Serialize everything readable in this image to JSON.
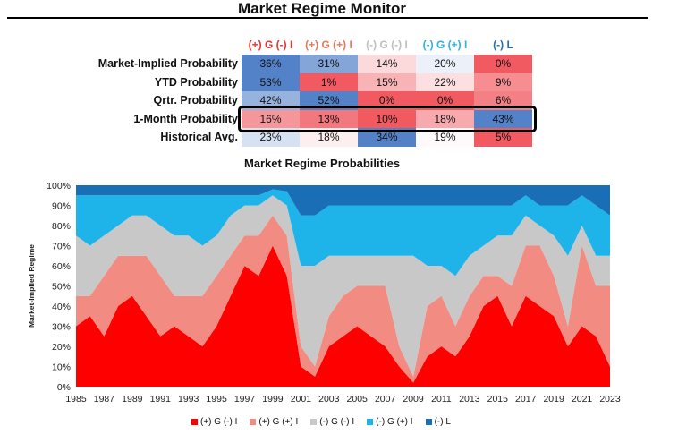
{
  "monitor": {
    "title": "Market Regime Monitor",
    "columns": [
      {
        "label": "(+) G (-) I",
        "color": "#E8322D"
      },
      {
        "label": "(+) G (+) I",
        "color": "#E8785A"
      },
      {
        "label": "(-) G (-) I",
        "color": "#BFBFBF"
      },
      {
        "label": "(-) G (+) I",
        "color": "#28B4E6"
      },
      {
        "label": "(-) L",
        "color": "#1F6FB5"
      }
    ],
    "rows": [
      {
        "label": "Market-Implied Probability",
        "values": [
          "36%",
          "31%",
          "14%",
          "20%",
          "0%"
        ]
      },
      {
        "label": "YTD Probability",
        "values": [
          "53%",
          "1%",
          "15%",
          "22%",
          "9%"
        ]
      },
      {
        "label": "Qrtr. Probability",
        "values": [
          "42%",
          "52%",
          "0%",
          "0%",
          "6%"
        ]
      },
      {
        "label": "1-Month Probability",
        "values": [
          "16%",
          "13%",
          "10%",
          "18%",
          "43%"
        ]
      },
      {
        "label": "Historical Avg.",
        "values": [
          "23%",
          "18%",
          "34%",
          "19%",
          "5%"
        ]
      }
    ]
  },
  "chart_data": {
    "type": "area",
    "title": "Market Regime Probabilities",
    "ylabel": "Market-Implied Regime",
    "xlabel": "",
    "ylim": [
      0,
      100
    ],
    "yticks": [
      "0%",
      "10%",
      "20%",
      "30%",
      "40%",
      "50%",
      "60%",
      "70%",
      "80%",
      "90%",
      "100%"
    ],
    "xticks": [
      "1985",
      "1987",
      "1989",
      "1991",
      "1993",
      "1995",
      "1997",
      "1999",
      "2001",
      "2003",
      "2005",
      "2007",
      "2009",
      "2011",
      "2013",
      "2015",
      "2017",
      "2019",
      "2021",
      "2023"
    ],
    "stacked": true,
    "x": [
      1985,
      1986,
      1987,
      1988,
      1989,
      1990,
      1991,
      1992,
      1993,
      1994,
      1995,
      1996,
      1997,
      1998,
      1999,
      2000,
      2001,
      2002,
      2003,
      2004,
      2005,
      2006,
      2007,
      2008,
      2009,
      2010,
      2011,
      2012,
      2013,
      2014,
      2015,
      2016,
      2017,
      2018,
      2019,
      2020,
      2021,
      2022,
      2023
    ],
    "series": [
      {
        "name": "(+) G (-) I",
        "color": "#FF0000",
        "values": [
          30,
          35,
          25,
          40,
          45,
          35,
          25,
          30,
          25,
          20,
          30,
          45,
          60,
          55,
          70,
          55,
          10,
          5,
          20,
          25,
          30,
          25,
          20,
          10,
          2,
          15,
          20,
          15,
          25,
          40,
          45,
          30,
          45,
          40,
          35,
          20,
          30,
          25,
          10
        ]
      },
      {
        "name": "(+) G (+) I",
        "color": "#F28B82",
        "values": [
          15,
          10,
          30,
          25,
          20,
          30,
          30,
          15,
          20,
          25,
          25,
          20,
          15,
          20,
          15,
          20,
          10,
          5,
          15,
          20,
          20,
          25,
          30,
          10,
          3,
          25,
          25,
          15,
          20,
          15,
          10,
          20,
          25,
          30,
          20,
          10,
          40,
          25,
          40
        ]
      },
      {
        "name": "(-) G (-) I",
        "color": "#C8C8C8",
        "values": [
          30,
          25,
          20,
          15,
          20,
          20,
          25,
          30,
          30,
          25,
          20,
          20,
          15,
          15,
          10,
          15,
          40,
          50,
          30,
          20,
          15,
          15,
          15,
          45,
          60,
          20,
          15,
          25,
          20,
          15,
          20,
          25,
          15,
          10,
          20,
          35,
          10,
          15,
          15
        ]
      },
      {
        "name": "(-) G (+) I",
        "color": "#1EB4EA",
        "values": [
          20,
          25,
          20,
          15,
          10,
          10,
          15,
          20,
          20,
          25,
          20,
          10,
          5,
          5,
          3,
          7,
          25,
          25,
          25,
          25,
          25,
          25,
          25,
          25,
          25,
          30,
          30,
          35,
          25,
          20,
          15,
          15,
          10,
          10,
          15,
          25,
          15,
          25,
          20
        ]
      },
      {
        "name": "(-) L",
        "color": "#1A6EB5",
        "values": [
          5,
          5,
          5,
          5,
          5,
          5,
          5,
          5,
          5,
          5,
          5,
          5,
          5,
          5,
          2,
          3,
          15,
          15,
          10,
          10,
          10,
          10,
          10,
          10,
          10,
          10,
          10,
          10,
          10,
          10,
          10,
          10,
          5,
          10,
          10,
          10,
          5,
          10,
          15
        ]
      }
    ],
    "legend_position": "bottom"
  }
}
